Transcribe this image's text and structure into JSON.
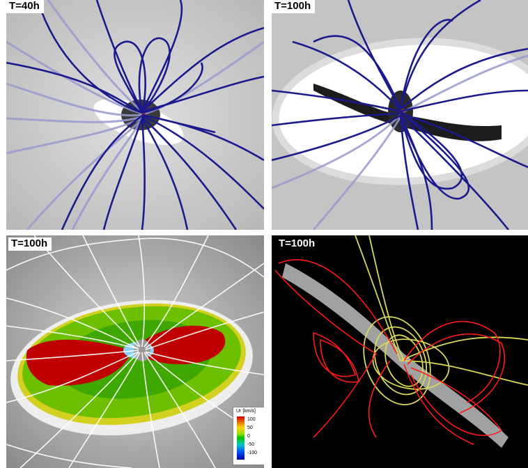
{
  "panels": [
    {
      "label": "T=40h"
    },
    {
      "label": "T=100h"
    },
    {
      "label": "T=100h"
    },
    {
      "label": "T=100h"
    }
  ],
  "legend": {
    "title": "Ur [km/s]",
    "ticks": [
      "100",
      "50",
      "0",
      "-50",
      "-100"
    ]
  },
  "colors": {
    "field_lines_top": "#1a1a8c",
    "field_lines_faded": "#9a9ad0",
    "streamlines": "#ffffff",
    "outflow": "#c00000",
    "slow_flow": "#4fb000",
    "red_field_lines": "#ff1a1a",
    "yellow_field_lines": "#d8d85a"
  }
}
